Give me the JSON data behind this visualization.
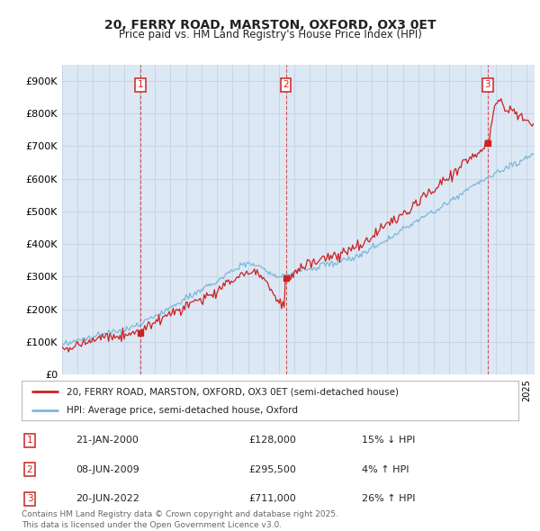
{
  "title": "20, FERRY ROAD, MARSTON, OXFORD, OX3 0ET",
  "subtitle": "Price paid vs. HM Land Registry's House Price Index (HPI)",
  "ylim": [
    0,
    950000
  ],
  "yticks": [
    0,
    100000,
    200000,
    300000,
    400000,
    500000,
    600000,
    700000,
    800000,
    900000
  ],
  "ytick_labels": [
    "£0",
    "£100K",
    "£200K",
    "£300K",
    "£400K",
    "£500K",
    "£600K",
    "£700K",
    "£800K",
    "£900K"
  ],
  "hpi_color": "#7eb8d8",
  "price_color": "#cc2222",
  "grid_color": "#c8d4e8",
  "bg_color": "#dce8f4",
  "legend_label_price": "20, FERRY ROAD, MARSTON, OXFORD, OX3 0ET (semi-detached house)",
  "legend_label_hpi": "HPI: Average price, semi-detached house, Oxford",
  "sale_events": [
    {
      "label": "1",
      "date_num": 2000.055,
      "price": 128000,
      "text": "21-JAN-2000",
      "amount": "£128,000",
      "pct": "15% ↓ HPI"
    },
    {
      "label": "2",
      "date_num": 2009.44,
      "price": 295500,
      "text": "08-JUN-2009",
      "amount": "£295,500",
      "pct": "4% ↑ HPI"
    },
    {
      "label": "3",
      "date_num": 2022.47,
      "price": 711000,
      "text": "20-JUN-2022",
      "amount": "£711,000",
      "pct": "26% ↑ HPI"
    }
  ],
  "footer": "Contains HM Land Registry data © Crown copyright and database right 2025.\nThis data is licensed under the Open Government Licence v3.0.",
  "xmin": 1995.0,
  "xmax": 2025.5
}
